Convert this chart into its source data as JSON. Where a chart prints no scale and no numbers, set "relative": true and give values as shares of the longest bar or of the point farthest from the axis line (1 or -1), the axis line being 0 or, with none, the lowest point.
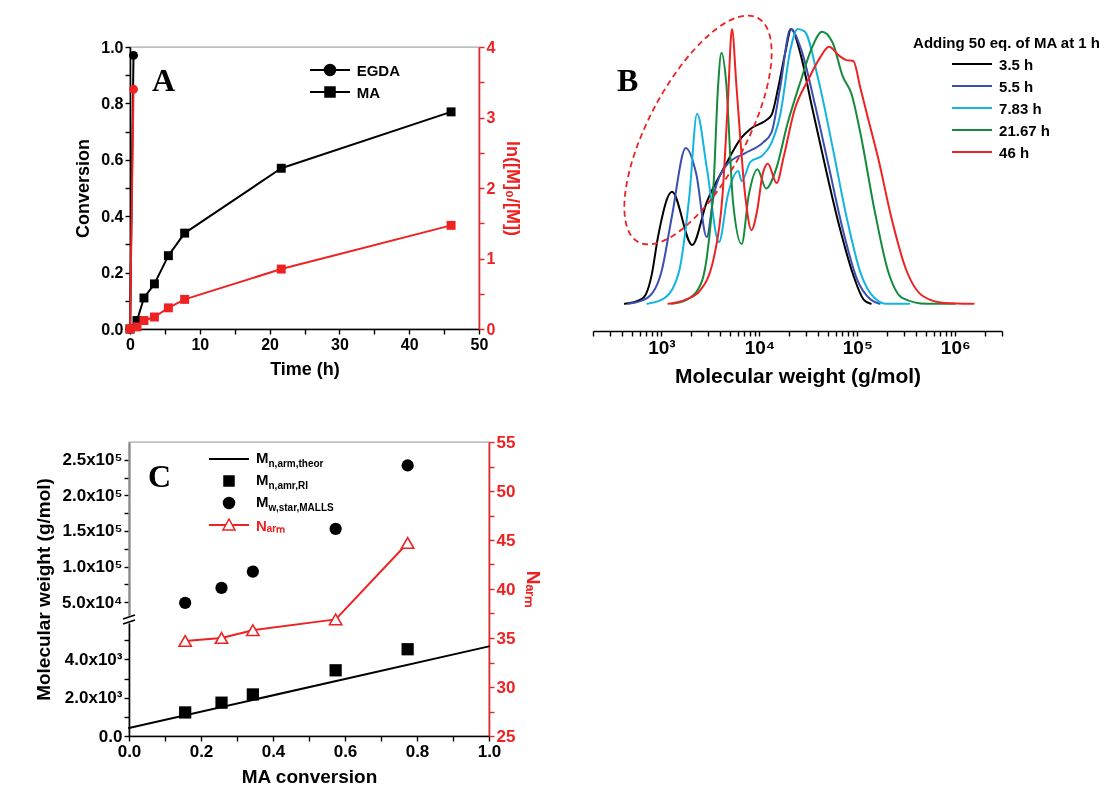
{
  "chart_data": [
    {
      "type": "line",
      "annotations": [
        "A"
      ],
      "xlabel": "Time (h)",
      "ylabel": "Conversion",
      "y2label": "ln([M]₀/[M])",
      "legend": "top right",
      "xlim": [
        0,
        50
      ],
      "xticks": [
        0,
        {
          "value": 5,
          "label": null
        },
        10,
        {
          "value": 15,
          "label": null
        },
        20,
        {
          "value": 25,
          "label": null
        },
        30,
        {
          "value": 35,
          "label": null
        },
        40,
        {
          "value": 45,
          "label": null
        },
        50
      ],
      "ylim": [
        0,
        1
      ],
      "yticks": [
        {
          "value": 0,
          "label": "0.0"
        },
        {
          "value": 0.1,
          "label": null
        },
        {
          "value": 0.2,
          "label": "0.2"
        },
        {
          "value": 0.3,
          "label": null
        },
        {
          "value": 0.4,
          "label": "0.4"
        },
        {
          "value": 0.5,
          "label": null
        },
        {
          "value": 0.6,
          "label": "0.6"
        },
        {
          "value": 0.7,
          "label": null
        },
        {
          "value": 0.8,
          "label": "0.8"
        },
        {
          "value": 0.9,
          "label": null
        },
        {
          "value": 1,
          "label": "1.0"
        }
      ],
      "y2lim": [
        0,
        4
      ],
      "y2ticks": [
        0,
        {
          "value": 0.5,
          "label": null
        },
        1,
        {
          "value": 1.5,
          "label": null
        },
        2,
        {
          "value": 2.5,
          "label": null
        },
        3,
        {
          "value": 3.5,
          "label": null
        },
        4
      ],
      "series": [
        {
          "name": "EGDA",
          "color": "#000000",
          "marker": "circle",
          "x": [
            0,
            0.5
          ],
          "values": [
            0,
            0.97
          ]
        },
        {
          "name": "MA",
          "color": "#000000",
          "marker": "square",
          "x": [
            0,
            1,
            2,
            3.5,
            5.5,
            7.83,
            21.67,
            46
          ],
          "values": [
            0,
            0.03,
            0.11,
            0.16,
            0.26,
            0.34,
            0.57,
            0.77
          ]
        },
        {
          "color": "#ee2222",
          "marker": "circle",
          "axis": "y2",
          "x": [
            0,
            0.5
          ],
          "values": [
            0,
            3.4
          ]
        },
        {
          "color": "#ee2222",
          "marker": "square",
          "axis": "y2",
          "x": [
            0,
            1,
            2,
            3.5,
            5.5,
            7.83,
            21.67,
            46
          ],
          "values": [
            0,
            0.03,
            0.12,
            0.17,
            0.3,
            0.42,
            0.85,
            1.47
          ]
        }
      ]
    },
    {
      "type": "line",
      "annotations": [
        "B"
      ],
      "xlabel": "Molecular weight (g/mol)",
      "legend_title": "Adding 50 eq. of MA at 1 h",
      "legend": "top right",
      "log": "x",
      "relative": true,
      "xlim": [
        200,
        3000000
      ],
      "xticks": [
        {
          "value": 200,
          "label": null
        },
        {
          "value": 300,
          "label": null
        },
        {
          "value": 400,
          "label": null
        },
        {
          "value": 500,
          "label": null
        },
        {
          "value": 600,
          "label": null
        },
        {
          "value": 700,
          "label": null
        },
        {
          "value": 800,
          "label": null
        },
        {
          "value": 900,
          "label": null
        },
        {
          "value": 1000,
          "label": "10³"
        },
        {
          "value": 2000,
          "label": null
        },
        {
          "value": 3000,
          "label": null
        },
        {
          "value": 4000,
          "label": null
        },
        {
          "value": 5000,
          "label": null
        },
        {
          "value": 6000,
          "label": null
        },
        {
          "value": 7000,
          "label": null
        },
        {
          "value": 8000,
          "label": null
        },
        {
          "value": 9000,
          "label": null
        },
        {
          "value": 10000,
          "label": "10⁴"
        },
        {
          "value": 20000,
          "label": null
        },
        {
          "value": 30000,
          "label": null
        },
        {
          "value": 40000,
          "label": null
        },
        {
          "value": 50000,
          "label": null
        },
        {
          "value": 60000,
          "label": null
        },
        {
          "value": 70000,
          "label": null
        },
        {
          "value": 80000,
          "label": null
        },
        {
          "value": 90000,
          "label": null
        },
        {
          "value": 100000,
          "label": "10⁵"
        },
        {
          "value": 200000,
          "label": null
        },
        {
          "value": 300000,
          "label": null
        },
        {
          "value": 400000,
          "label": null
        },
        {
          "value": 500000,
          "label": null
        },
        {
          "value": 600000,
          "label": null
        },
        {
          "value": 700000,
          "label": null
        },
        {
          "value": 800000,
          "label": null
        },
        {
          "value": 900000,
          "label": null
        },
        {
          "value": 1000000,
          "label": "10⁶"
        },
        {
          "value": 2000000,
          "label": null
        },
        {
          "value": 3000000,
          "label": null
        }
      ],
      "series": [
        {
          "name": "3.5 h",
          "color": "#000000",
          "x": [
            423,
            611,
            692,
            794,
            921,
            1280,
            2060,
            2900,
            4380,
            6590,
            8100,
            11700,
            13300,
            15600,
            18400,
            21100,
            26600,
            34000,
            47200,
            65600,
            91000,
            116000,
            137000
          ],
          "values": [
            0.09,
            0.104,
            0.121,
            0.185,
            0.311,
            0.461,
            0.285,
            0.427,
            0.542,
            0.641,
            0.669,
            0.698,
            0.715,
            0.807,
            0.923,
            1,
            0.911,
            0.75,
            0.542,
            0.346,
            0.185,
            0.104,
            0.09
          ]
        },
        {
          "name": "5.5 h",
          "color": "#3a4fb0",
          "x": [
            459,
            720,
            1000,
            1280,
            1770,
            2270,
            2900,
            3420,
            4750,
            7160,
            10800,
            13300,
            16300,
            20800,
            26600,
            36900,
            51300,
            71200,
            98900,
            137000,
            169000
          ],
          "values": [
            0.09,
            0.11,
            0.196,
            0.381,
            0.606,
            0.519,
            0.311,
            0.449,
            0.554,
            0.589,
            0.623,
            0.658,
            0.807,
            1,
            0.934,
            0.75,
            0.542,
            0.335,
            0.173,
            0.104,
            0.09
          ]
        },
        {
          "name": "7.83 h",
          "color": "#14b4e0",
          "x": [
            720,
            1090,
            1510,
            1930,
            2310,
            2900,
            3870,
            4750,
            6080,
            6590,
            8100,
            10800,
            13300,
            16300,
            20800,
            24500,
            28900,
            40100,
            55700,
            77300,
            107000,
            149000,
            199000,
            339000
          ],
          "values": [
            0.09,
            0.11,
            0.196,
            0.449,
            0.719,
            0.542,
            0.294,
            0.449,
            0.53,
            0.496,
            0.56,
            0.582,
            0.623,
            0.715,
            0.934,
            1,
            0.992,
            0.831,
            0.611,
            0.38,
            0.196,
            0.11,
            0.09,
            0.09
          ]
        },
        {
          "name": "21.67 h",
          "color": "#168a3c",
          "x": [
            1280,
            1770,
            2370,
            2900,
            3420,
            3780,
            4100,
            4560,
            5380,
            6590,
            7780,
            9550,
            11700,
            15000,
            19200,
            26600,
            34000,
            43600,
            55700,
            71200,
            87400,
            107000,
            149000,
            207000,
            287000,
            510000,
            982000
          ],
          "values": [
            0.09,
            0.102,
            0.138,
            0.242,
            0.496,
            0.807,
            0.921,
            0.831,
            0.427,
            0.288,
            0.449,
            0.536,
            0.472,
            0.542,
            0.682,
            0.831,
            0.934,
            0.991,
            0.956,
            0.842,
            0.784,
            0.658,
            0.404,
            0.196,
            0.11,
            0.09,
            0.09
          ]
        },
        {
          "name": "46 h",
          "color": "#ee2222",
          "x": [
            1180,
            1770,
            2460,
            3420,
            4200,
            4750,
            5250,
            5840,
            7160,
            8300,
            9550,
            10800,
            12200,
            15000,
            17700,
            22600,
            31400,
            41800,
            51300,
            65600,
            77300,
            91000,
            107000,
            126000,
            162000,
            225000,
            312000,
            470000,
            769000,
            1540000
          ],
          "values": [
            0.09,
            0.104,
            0.133,
            0.242,
            0.449,
            0.749,
            1,
            0.807,
            0.449,
            0.334,
            0.404,
            0.52,
            0.554,
            0.49,
            0.577,
            0.727,
            0.831,
            0.906,
            0.941,
            0.911,
            0.897,
            0.894,
            0.807,
            0.715,
            0.577,
            0.369,
            0.207,
            0.115,
            0.093,
            0.09
          ]
        }
      ]
    },
    {
      "type": "scatter",
      "annotations": [
        "C"
      ],
      "ylabel": "Molecular weight (g/mol)",
      "legend": "top left",
      "tick_labels": "y",
      "marker": "circle",
      "xlim": [
        0,
        1
      ],
      "ylim": [
        32000,
        275000
      ],
      "yticks": [
        {
          "value": 50000,
          "label": "5.0x10⁴"
        },
        {
          "value": 75000,
          "label": null
        },
        {
          "value": 100000,
          "label": "1.0x10⁵"
        },
        {
          "value": 125000,
          "label": null
        },
        {
          "value": 150000,
          "label": "1.5x10⁵"
        },
        {
          "value": 175000,
          "label": null
        },
        {
          "value": 200000,
          "label": "2.0x10⁵"
        },
        {
          "value": 225000,
          "label": null
        },
        {
          "value": 250000,
          "label": "2.5x10⁵"
        }
      ],
      "series": [
        {
          "name": "M$_{w,star,MALLS}$",
          "color": "#000000",
          "x": [
            0.156,
            0.257,
            0.344,
            0.574,
            0.774
          ],
          "values": [
            49000,
            70000,
            93000,
            153000,
            242000
          ]
        }
      ]
    },
    {
      "type": "line",
      "xlabel": "MA conversion",
      "y2label": "Nₐᵣₘ",
      "legend": "top left",
      "xlim": [
        0,
        1
      ],
      "xticks": [
        {
          "value": 0,
          "label": "0.0"
        },
        {
          "value": 0.1,
          "label": null
        },
        {
          "value": 0.2,
          "label": "0.2"
        },
        {
          "value": 0.3,
          "label": null
        },
        {
          "value": 0.4,
          "label": "0.4"
        },
        {
          "value": 0.5,
          "label": null
        },
        {
          "value": 0.6,
          "label": "0.6"
        },
        {
          "value": 0.7,
          "label": null
        },
        {
          "value": 0.8,
          "label": "0.8"
        },
        {
          "value": 0.9,
          "label": null
        },
        {
          "value": 1,
          "label": "1.0"
        }
      ],
      "ylim": [
        0,
        5900
      ],
      "yticks": [
        {
          "value": 0,
          "label": "0.0"
        },
        {
          "value": 1000,
          "label": null
        },
        {
          "value": 2000,
          "label": "2.0x10³"
        },
        {
          "value": 3000,
          "label": null
        },
        {
          "value": 4000,
          "label": "4.0x10³"
        },
        {
          "value": 5000,
          "label": null
        }
      ],
      "y2lim": [
        25,
        55
      ],
      "y2ticks": [
        25,
        {
          "value": 27.5,
          "label": null
        },
        30,
        {
          "value": 32.5,
          "label": null
        },
        35,
        {
          "value": 37.5,
          "label": null
        },
        40,
        {
          "value": 42.5,
          "label": null
        },
        45,
        {
          "value": 47.5,
          "label": null
        },
        50,
        {
          "value": 52.5,
          "label": null
        },
        55
      ],
      "series": [
        {
          "name": "M$_{n,arm,theor}$",
          "color": "#000000",
          "x": [
            0,
            1
          ],
          "values": [
            420,
            4680
          ]
        },
        {
          "name": "M$_{n,amr,RI}$",
          "type": "scatter",
          "marker": "square",
          "color": "#000000",
          "x": [
            0.156,
            0.257,
            0.344,
            0.574,
            0.774
          ],
          "values": [
            1230,
            1740,
            2170,
            3430,
            4530
          ]
        },
        {
          "name": "Nₐᵣₘ",
          "marker": "triangle",
          "axis": "y2",
          "color": "#ee2222",
          "x": [
            0.156,
            0.257,
            0.344,
            0.574,
            0.774
          ],
          "values": [
            34.7,
            35.0,
            35.8,
            36.9,
            44.7
          ]
        }
      ]
    }
  ]
}
